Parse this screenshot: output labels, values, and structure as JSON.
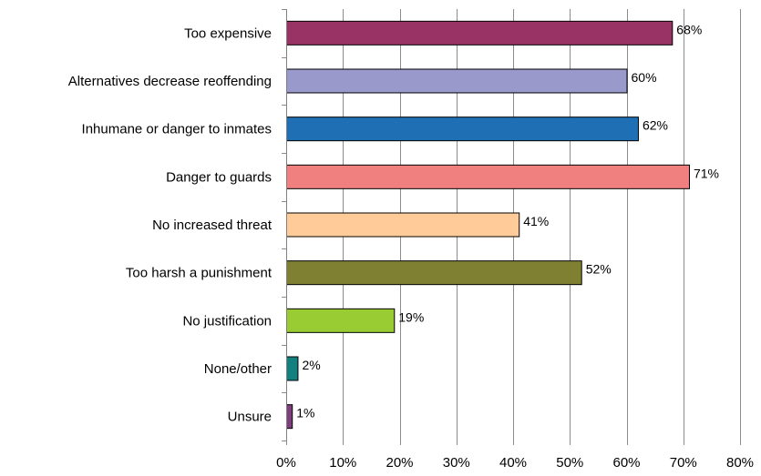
{
  "chart_data": {
    "type": "bar",
    "orientation": "horizontal",
    "categories": [
      "Too expensive",
      "Alternatives decrease reoffending",
      "Inhumane or danger to inmates",
      "Danger to guards",
      "No increased threat",
      "Too harsh a punishment",
      "No justification",
      "None/other",
      "Unsure"
    ],
    "values": [
      68,
      60,
      62,
      71,
      41,
      52,
      19,
      2,
      1
    ],
    "data_labels": [
      "68%",
      "60%",
      "62%",
      "71%",
      "41%",
      "52%",
      "19%",
      "2%",
      "1%"
    ],
    "colors": [
      "#993366",
      "#9999cc",
      "#1f6fb5",
      "#f08080",
      "#ffcc99",
      "#808033",
      "#99cc33",
      "#138080",
      "#7f3f7f"
    ],
    "xlim": [
      0,
      80
    ],
    "xticks": [
      0,
      10,
      20,
      30,
      40,
      50,
      60,
      70,
      80
    ],
    "xtick_labels": [
      "0%",
      "10%",
      "20%",
      "30%",
      "40%",
      "50%",
      "60%",
      "70%",
      "80%"
    ],
    "title": "",
    "xlabel": "",
    "ylabel": "",
    "grid": "vertical",
    "legend": "none"
  }
}
